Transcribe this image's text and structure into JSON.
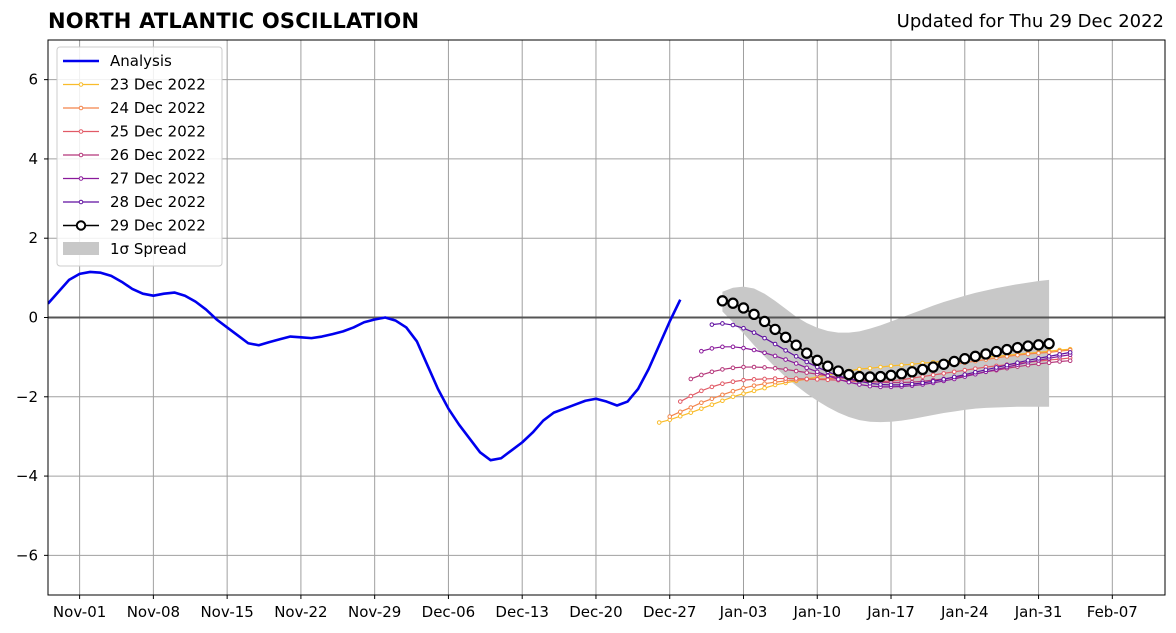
{
  "header": {
    "title": "NORTH ATLANTIC OSCILLATION",
    "updated": "Updated for Thu 29 Dec 2022"
  },
  "chart_data": {
    "type": "line",
    "title": "NORTH ATLANTIC OSCILLATION",
    "subtitle": "Updated for Thu 29 Dec 2022",
    "xlabel": "",
    "ylabel": "",
    "x_axis": {
      "type": "date",
      "range": [
        "2022-10-29",
        "2023-02-12"
      ],
      "ticks": [
        "2022-11-01",
        "2022-11-08",
        "2022-11-15",
        "2022-11-22",
        "2022-11-29",
        "2022-12-06",
        "2022-12-13",
        "2022-12-20",
        "2022-12-27",
        "2023-01-03",
        "2023-01-10",
        "2023-01-17",
        "2023-01-24",
        "2023-01-31",
        "2023-02-07"
      ],
      "tick_labels": [
        "Nov-01",
        "Nov-08",
        "Nov-15",
        "Nov-22",
        "Nov-29",
        "Dec-06",
        "Dec-13",
        "Dec-20",
        "Dec-27",
        "Jan-03",
        "Jan-10",
        "Jan-17",
        "Jan-24",
        "Jan-31",
        "Feb-07"
      ]
    },
    "y_axis": {
      "range": [
        -7,
        7
      ],
      "ticks": [
        -6,
        -4,
        -2,
        0,
        2,
        4,
        6
      ],
      "tick_labels": [
        "−6",
        "−4",
        "−2",
        "0",
        "2",
        "4",
        "6"
      ]
    },
    "grid": true,
    "zero_line": true,
    "legend": {
      "placement": "top-left",
      "entries": [
        "Analysis",
        "23 Dec 2022",
        "24 Dec 2022",
        "25 Dec 2022",
        "26 Dec 2022",
        "27 Dec 2022",
        "28 Dec 2022",
        "29 Dec 2022",
        "1σ Spread"
      ]
    },
    "analysis": {
      "name": "Analysis",
      "color": "#0000ee",
      "start": "2022-10-29",
      "values": [
        0.35,
        0.65,
        0.95,
        1.1,
        1.15,
        1.13,
        1.05,
        0.9,
        0.72,
        0.6,
        0.55,
        0.6,
        0.63,
        0.55,
        0.4,
        0.2,
        -0.05,
        -0.25,
        -0.45,
        -0.65,
        -0.7,
        -0.62,
        -0.55,
        -0.48,
        -0.5,
        -0.52,
        -0.48,
        -0.42,
        -0.35,
        -0.25,
        -0.12,
        -0.05,
        0.0,
        -0.08,
        -0.25,
        -0.6,
        -1.2,
        -1.8,
        -2.3,
        -2.7,
        -3.05,
        -3.4,
        -3.6,
        -3.55,
        -3.35,
        -3.15,
        -2.9,
        -2.6,
        -2.4,
        -2.3,
        -2.2,
        -2.1,
        -2.05,
        -2.12,
        -2.22,
        -2.12,
        -1.8,
        -1.3,
        -0.7,
        -0.1,
        0.45
      ]
    },
    "forecasts": [
      {
        "name": "23 Dec 2022",
        "color": "#f9bc2a",
        "start": "2022-12-26",
        "values": [
          -2.65,
          -2.58,
          -2.49,
          -2.4,
          -2.3,
          -2.2,
          -2.1,
          -2.0,
          -1.92,
          -1.85,
          -1.78,
          -1.7,
          -1.65,
          -1.6,
          -1.55,
          -1.5,
          -1.45,
          -1.4,
          -1.35,
          -1.3,
          -1.28,
          -1.25,
          -1.22,
          -1.2,
          -1.18,
          -1.15,
          -1.13,
          -1.1,
          -1.08,
          -1.05,
          -1.02,
          -1.0,
          -0.98,
          -0.95,
          -0.93,
          -0.9,
          -0.88,
          -0.85,
          -0.82,
          -0.8
        ]
      },
      {
        "name": "24 Dec 2022",
        "color": "#f3844b",
        "start": "2022-12-27",
        "values": [
          -2.5,
          -2.38,
          -2.27,
          -2.15,
          -2.05,
          -1.95,
          -1.86,
          -1.78,
          -1.72,
          -1.67,
          -1.63,
          -1.6,
          -1.58,
          -1.56,
          -1.55,
          -1.54,
          -1.53,
          -1.52,
          -1.5,
          -1.48,
          -1.45,
          -1.42,
          -1.38,
          -1.34,
          -1.3,
          -1.26,
          -1.22,
          -1.18,
          -1.14,
          -1.1,
          -1.06,
          -1.02,
          -0.98,
          -0.95,
          -0.92,
          -0.9,
          -0.88,
          -0.85,
          -0.82
        ]
      },
      {
        "name": "25 Dec 2022",
        "color": "#e15a66",
        "start": "2022-12-28",
        "values": [
          -2.12,
          -1.98,
          -1.85,
          -1.75,
          -1.67,
          -1.62,
          -1.58,
          -1.56,
          -1.55,
          -1.54,
          -1.54,
          -1.54,
          -1.55,
          -1.56,
          -1.57,
          -1.58,
          -1.6,
          -1.62,
          -1.63,
          -1.62,
          -1.6,
          -1.57,
          -1.53,
          -1.49,
          -1.45,
          -1.41,
          -1.37,
          -1.33,
          -1.29,
          -1.25,
          -1.22,
          -1.19,
          -1.16,
          -1.13,
          -1.1,
          -1.07,
          -1.05,
          -1.02
        ]
      },
      {
        "name": "26 Dec 2022",
        "color": "#b5367a",
        "start": "2022-12-29",
        "values": [
          -1.55,
          -1.45,
          -1.37,
          -1.31,
          -1.27,
          -1.25,
          -1.25,
          -1.26,
          -1.28,
          -1.31,
          -1.35,
          -1.39,
          -1.43,
          -1.47,
          -1.51,
          -1.55,
          -1.58,
          -1.61,
          -1.63,
          -1.64,
          -1.64,
          -1.63,
          -1.61,
          -1.58,
          -1.55,
          -1.51,
          -1.47,
          -1.42,
          -1.37,
          -1.33,
          -1.28,
          -1.24,
          -1.2,
          -1.17,
          -1.14,
          -1.11,
          -1.09
        ]
      },
      {
        "name": "27 Dec 2022",
        "color": "#8a1a9b",
        "start": "2022-12-30",
        "values": [
          -0.85,
          -0.78,
          -0.74,
          -0.74,
          -0.77,
          -0.82,
          -0.89,
          -0.97,
          -1.06,
          -1.16,
          -1.27,
          -1.37,
          -1.47,
          -1.56,
          -1.63,
          -1.69,
          -1.73,
          -1.75,
          -1.75,
          -1.74,
          -1.72,
          -1.69,
          -1.65,
          -1.6,
          -1.55,
          -1.49,
          -1.43,
          -1.37,
          -1.31,
          -1.25,
          -1.19,
          -1.13,
          -1.08,
          -1.03,
          -0.98,
          -0.94
        ]
      },
      {
        "name": "28 Dec 2022",
        "color": "#5f0fa0",
        "start": "2022-12-31",
        "values": [
          -0.18,
          -0.15,
          -0.19,
          -0.27,
          -0.38,
          -0.52,
          -0.67,
          -0.83,
          -0.98,
          -1.12,
          -1.25,
          -1.37,
          -1.47,
          -1.55,
          -1.61,
          -1.66,
          -1.69,
          -1.7,
          -1.7,
          -1.68,
          -1.65,
          -1.61,
          -1.56,
          -1.5,
          -1.44,
          -1.38,
          -1.32,
          -1.26,
          -1.2,
          -1.14,
          -1.08,
          -1.03,
          -0.98,
          -0.93,
          -0.88
        ]
      }
    ],
    "latest": {
      "name": "29 Dec 2022",
      "color": "#000000",
      "start": "2023-01-01",
      "values": [
        0.42,
        0.36,
        0.24,
        0.08,
        -0.1,
        -0.3,
        -0.5,
        -0.7,
        -0.9,
        -1.08,
        -1.23,
        -1.35,
        -1.44,
        -1.49,
        -1.5,
        -1.49,
        -1.46,
        -1.42,
        -1.37,
        -1.31,
        -1.25,
        -1.18,
        -1.11,
        -1.04,
        -0.98,
        -0.92,
        -0.86,
        -0.81,
        -0.76,
        -0.72,
        -0.69,
        -0.66
      ]
    },
    "spread": {
      "name": "1σ Spread",
      "color": "#c8c8c8",
      "start": "2023-01-01",
      "upper": [
        0.65,
        0.75,
        0.78,
        0.73,
        0.6,
        0.42,
        0.22,
        0.02,
        -0.14,
        -0.26,
        -0.34,
        -0.38,
        -0.38,
        -0.35,
        -0.28,
        -0.2,
        -0.1,
        0.0,
        0.1,
        0.2,
        0.3,
        0.39,
        0.47,
        0.55,
        0.62,
        0.68,
        0.74,
        0.79,
        0.84,
        0.88,
        0.92,
        0.95
      ],
      "lower": [
        0.15,
        -0.12,
        -0.4,
        -0.7,
        -0.98,
        -1.25,
        -1.5,
        -1.72,
        -1.92,
        -2.1,
        -2.26,
        -2.4,
        -2.51,
        -2.59,
        -2.63,
        -2.64,
        -2.63,
        -2.6,
        -2.56,
        -2.51,
        -2.46,
        -2.41,
        -2.37,
        -2.33,
        -2.3,
        -2.28,
        -2.27,
        -2.26,
        -2.25,
        -2.25,
        -2.25,
        -2.25
      ]
    }
  }
}
